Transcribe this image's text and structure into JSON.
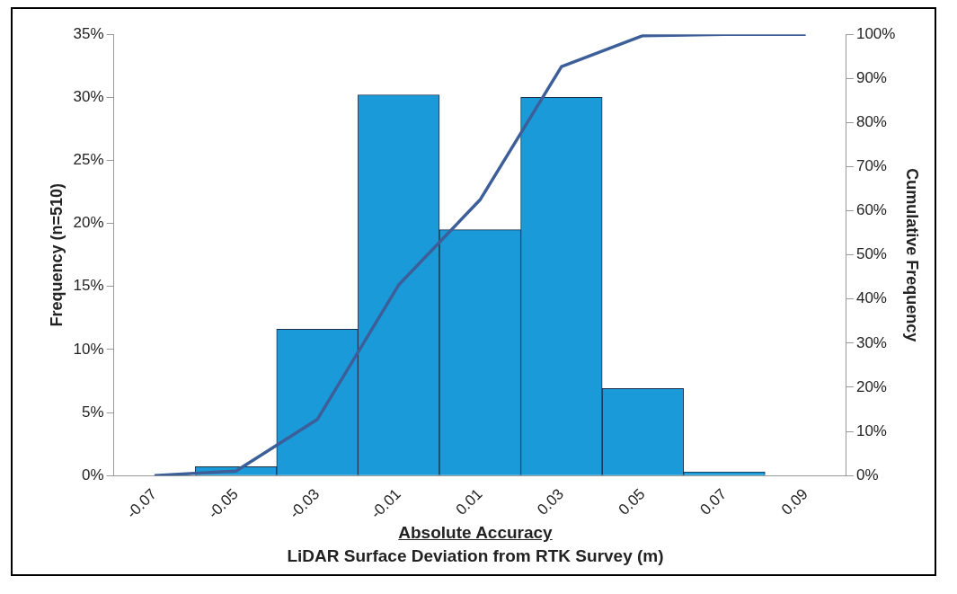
{
  "chart_data": {
    "type": "bar",
    "xlabel": "Absolute Accuracy",
    "ylabel": "Frequency (n=510)",
    "y2label": "Cumulative Frequency",
    "annotations": [
      "LiDAR Surface Deviation from RTK Survey (m)"
    ],
    "categories": [
      "-0.07",
      "-0.05",
      "-0.03",
      "-0.01",
      "0.01",
      "0.03",
      "0.05",
      "0.07",
      "0.09"
    ],
    "series": [
      {
        "color": "#1a9ad8",
        "values": [
          0,
          0.7,
          11.6,
          30.2,
          19.5,
          30.0,
          6.9,
          0.3,
          0
        ]
      },
      {
        "type": "line",
        "axis": "y2",
        "color": "#3d5f99",
        "values": [
          0,
          1,
          12.7,
          43.2,
          62.5,
          92.7,
          99.7,
          100,
          100
        ]
      }
    ],
    "ylim": [
      0,
      35
    ],
    "yticks": [
      {
        "value": 0,
        "label": "0%"
      },
      {
        "value": 5,
        "label": "5%"
      },
      {
        "value": 10,
        "label": "10%"
      },
      {
        "value": 15,
        "label": "15%"
      },
      {
        "value": 20,
        "label": "20%"
      },
      {
        "value": 25,
        "label": "25%"
      },
      {
        "value": 30,
        "label": "30%"
      },
      {
        "value": 35,
        "label": "35%"
      }
    ],
    "y2lim": [
      0,
      100
    ],
    "y2ticks": [
      {
        "value": 0,
        "label": "0%"
      },
      {
        "value": 10,
        "label": "10%"
      },
      {
        "value": 20,
        "label": "20%"
      },
      {
        "value": 30,
        "label": "30%"
      },
      {
        "value": 40,
        "label": "40%"
      },
      {
        "value": 50,
        "label": "50%"
      },
      {
        "value": 60,
        "label": "60%"
      },
      {
        "value": 70,
        "label": "70%"
      },
      {
        "value": 80,
        "label": "80%"
      },
      {
        "value": 90,
        "label": "90%"
      },
      {
        "value": 100,
        "label": "100%"
      }
    ],
    "grid": false,
    "legend": false,
    "marker": "none"
  }
}
